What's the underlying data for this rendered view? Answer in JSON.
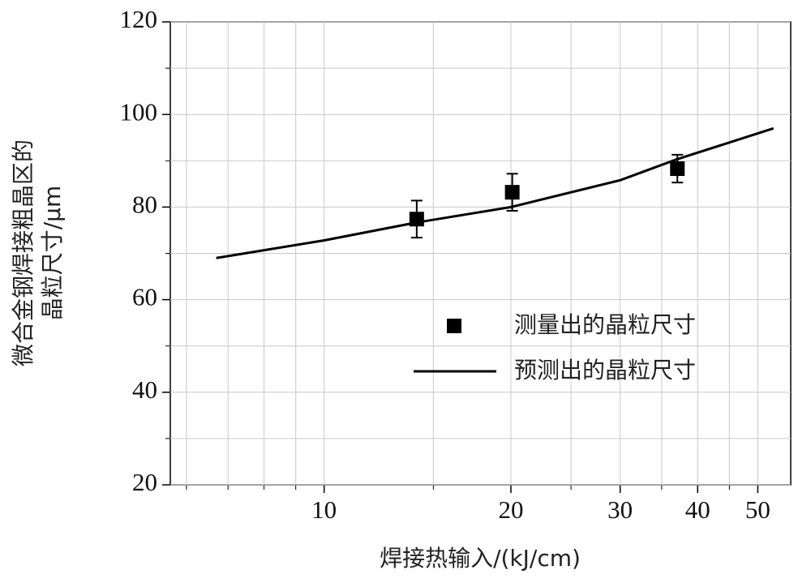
{
  "chart_data": {
    "type": "scatter",
    "xlabel": "焊接热输入/(kJ/cm)",
    "ylabel": [
      "微合金钢焊接粗晶区的",
      "晶粒尺寸/μm"
    ],
    "xscale": "log",
    "xlim": [
      5.65,
      56.5
    ],
    "ylim": [
      20,
      120
    ],
    "xticks": [
      10,
      20,
      30,
      40,
      50
    ],
    "yticks": [
      20,
      40,
      60,
      80,
      100,
      120
    ],
    "xminor": [
      6,
      7,
      8,
      9,
      15,
      25,
      35,
      45
    ],
    "yminor": [
      30,
      50,
      70,
      90,
      110
    ],
    "grid": true,
    "series": [
      {
        "name": "测量出的晶粒尺寸",
        "type": "scatter",
        "color": "#000000",
        "x": [
          14.1,
          20.1,
          37.1
        ],
        "values": [
          77.4,
          83.2,
          88.3
        ],
        "errors": [
          4,
          4,
          3
        ]
      },
      {
        "name": "预测出的晶粒尺寸",
        "type": "line",
        "color": "#000000",
        "x": [
          6.7,
          10,
          14,
          20,
          30,
          37,
          53
        ],
        "values": [
          69,
          72.8,
          76.6,
          80,
          85.8,
          90.3,
          97
        ]
      }
    ]
  }
}
